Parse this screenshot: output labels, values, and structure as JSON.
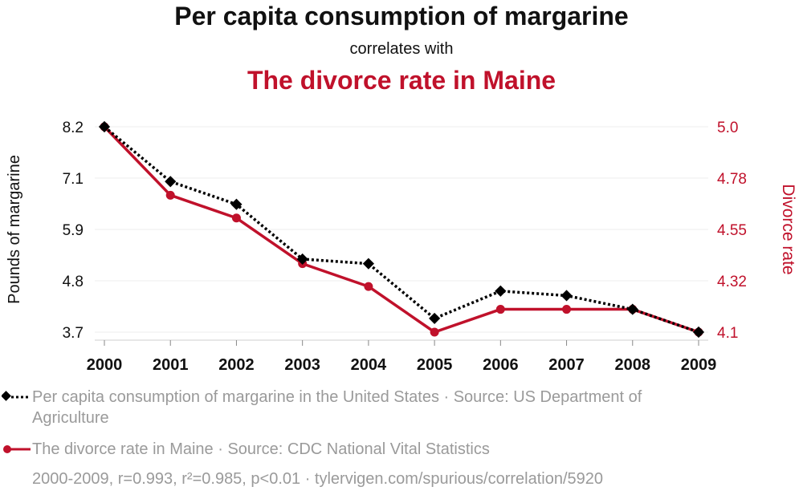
{
  "chart_data": {
    "type": "line",
    "title": "Per capita consumption of margarine",
    "subtitle": "correlates with",
    "title2": "The divorce rate in Maine",
    "x": [
      "2000",
      "2001",
      "2002",
      "2003",
      "2004",
      "2005",
      "2006",
      "2007",
      "2008",
      "2009"
    ],
    "y_left_label": "Pounds of margarine",
    "y_right_label": "Divorce rate",
    "y_left_ticks": [
      "8.2",
      "7.1",
      "5.9",
      "4.8",
      "3.7"
    ],
    "y_right_ticks": [
      "5.0",
      "4.78",
      "4.55",
      "4.32",
      "4.1"
    ],
    "y_left_range": [
      3.7,
      8.2
    ],
    "y_right_range": [
      4.1,
      5.0
    ],
    "series": [
      {
        "name": "Per capita consumption of margarine in the United States · Source: US Department of Agriculture",
        "axis": "left",
        "color": "#000000",
        "style": "dotted",
        "marker": "diamond",
        "values": [
          8.2,
          7.0,
          6.5,
          5.3,
          5.2,
          4.0,
          4.6,
          4.5,
          4.2,
          3.7
        ]
      },
      {
        "name": "The divorce rate in Maine · Source: CDC National Vital Statistics",
        "axis": "right",
        "color": "#c0112b",
        "style": "solid",
        "marker": "circle",
        "values": [
          5.0,
          4.7,
          4.6,
          4.4,
          4.3,
          4.1,
          4.2,
          4.2,
          4.2,
          4.1
        ]
      }
    ],
    "grid": true,
    "legend_position": "bottom"
  },
  "footnote": "2000-2009, r=0.993, r²=0.985, p<0.01 · tylervigen.com/spurious/correlation/5920"
}
